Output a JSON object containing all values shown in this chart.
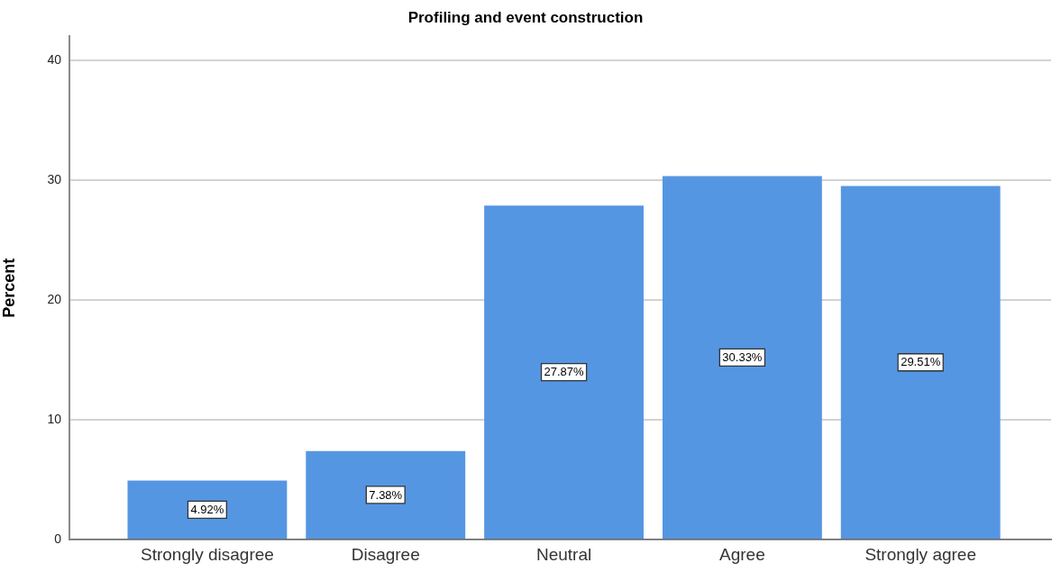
{
  "chart_data": {
    "type": "bar",
    "title": "Profiling and event construction",
    "ylabel": "Percent",
    "categories": [
      "Strongly disagree",
      "Disagree",
      "Neutral",
      "Agree",
      "Strongly agree"
    ],
    "values": [
      4.92,
      7.38,
      27.87,
      30.33,
      29.51
    ],
    "value_labels": [
      "4.92%",
      "7.38%",
      "27.87%",
      "30.33%",
      "29.51%"
    ],
    "color": "#5596e3",
    "ylim": [
      0,
      42
    ],
    "yticks": [
      0,
      10,
      20,
      30,
      40
    ],
    "grid": "y"
  }
}
